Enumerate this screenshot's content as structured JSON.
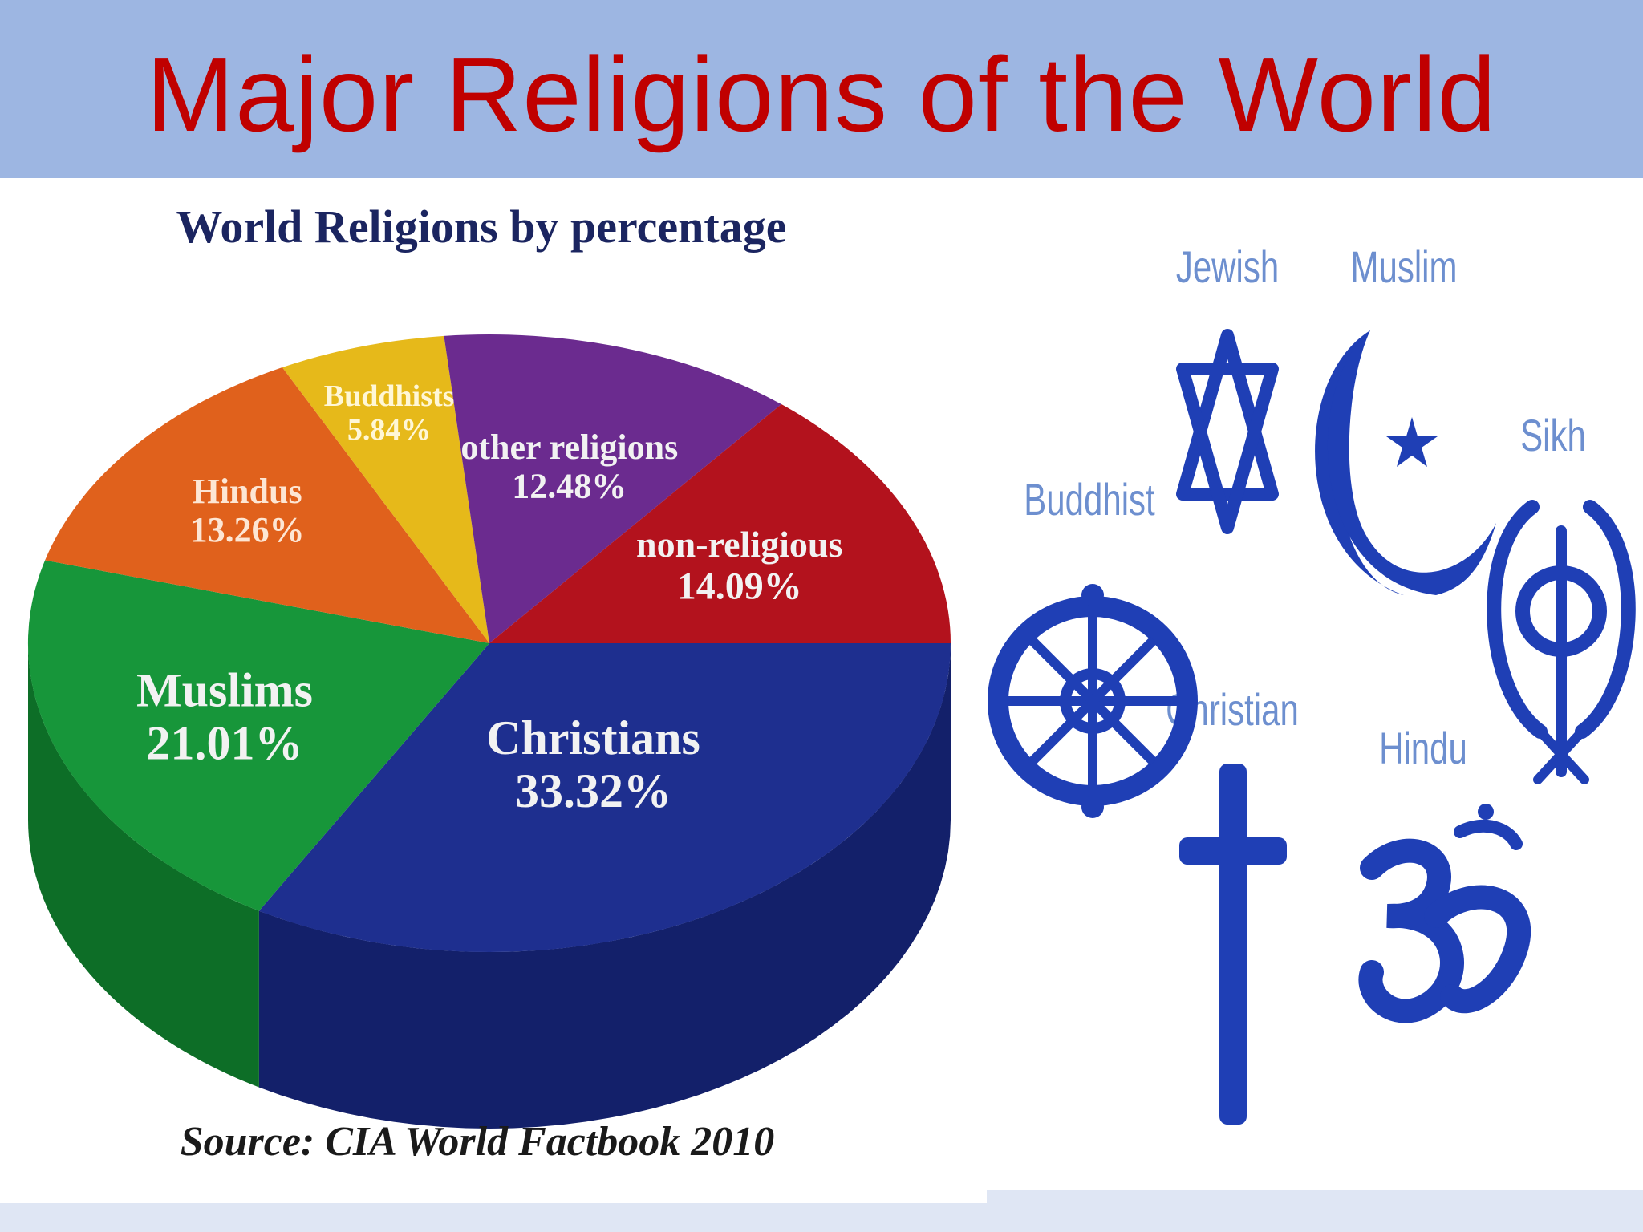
{
  "slide": {
    "title": "Major Religions of the World"
  },
  "chart_data": {
    "type": "pie",
    "title": "World Religions by percentage",
    "source": "Source: CIA World Factbook 2010",
    "slices": [
      {
        "label": "Christians",
        "value": 33.32,
        "value_text": "33.32%",
        "color": "#1e2f8f",
        "side_color": "#13206a"
      },
      {
        "label": "Muslims",
        "value": 21.01,
        "value_text": "21.01%",
        "color": "#17963a",
        "side_color": "#0d6e27"
      },
      {
        "label": "Hindus",
        "value": 13.26,
        "value_text": "13.26%",
        "color": "#e0611c",
        "side_color": "#a9470f"
      },
      {
        "label": "Buddhists",
        "value": 5.84,
        "value_text": "5.84%",
        "color": "#e6b91a",
        "side_color": "#b08b0f"
      },
      {
        "label": "other religions",
        "value": 12.48,
        "value_text": "12.48%",
        "color": "#6b2b8f",
        "side_color": "#4a1c66"
      },
      {
        "label": "non-religious",
        "value": 14.09,
        "value_text": "14.09%",
        "color": "#b3121d",
        "side_color": "#820b13"
      }
    ]
  },
  "symbols": {
    "labels": {
      "jewish": "Jewish",
      "muslim": "Muslim",
      "sikh": "Sikh",
      "buddhist": "Buddhist",
      "christian": "Christian",
      "hindu": "Hindu"
    },
    "color": "#1f3fb5",
    "label_color": "#6d8fcf"
  },
  "colors": {
    "title_band": "#9db6e2",
    "title_text": "#c00000",
    "chart_title": "#1b2560"
  }
}
